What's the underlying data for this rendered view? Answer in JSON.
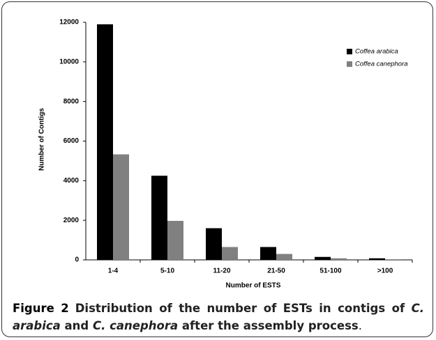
{
  "chart_data": {
    "type": "bar",
    "x_label": "Number of ESTS",
    "y_label": "Number of Contigs",
    "categories": [
      "1-4",
      "5-10",
      "11-20",
      "21-50",
      "51-100",
      ">100"
    ],
    "series": [
      {
        "name": "Coffea arabica",
        "color": "#000000",
        "values": [
          11900,
          4250,
          1600,
          650,
          150,
          80
        ]
      },
      {
        "name": "Coffea canephora",
        "color": "#808080",
        "values": [
          5330,
          1970,
          650,
          300,
          80,
          30
        ]
      }
    ],
    "ylim": [
      0,
      12000
    ],
    "yticks": [
      0,
      2000,
      4000,
      6000,
      8000,
      10000,
      12000
    ],
    "legend": "upper right",
    "grid": false
  },
  "caption": {
    "label": "Figure 2",
    "segments": [
      {
        "text": "Distribution of the number of ESTs in contigs of ",
        "italic": false,
        "bold": true
      },
      {
        "text": "C. arabica",
        "italic": true,
        "bold": true
      },
      {
        "text": " and ",
        "italic": false,
        "bold": true
      },
      {
        "text": "C. canephora",
        "italic": true,
        "bold": true
      },
      {
        "text": " after the assembly process",
        "italic": false,
        "bold": true
      },
      {
        "text": ".",
        "italic": false,
        "bold": false
      }
    ]
  }
}
